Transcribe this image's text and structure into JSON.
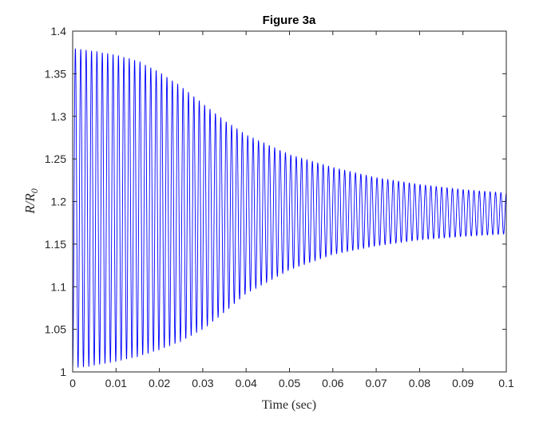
{
  "chart_data": {
    "type": "line",
    "title": "Figure 3a",
    "xlabel": "Time (sec)",
    "ylabel": "R/R_0",
    "ylabel_parts": {
      "main": "R/R",
      "sub": "0"
    },
    "xlim": [
      0,
      0.1
    ],
    "ylim": [
      1,
      1.4
    ],
    "xticks": [
      0,
      0.01,
      0.02,
      0.03,
      0.04,
      0.05,
      0.06,
      0.07,
      0.08,
      0.09,
      0.1
    ],
    "xtick_labels": [
      "0",
      "0.01",
      "0.02",
      "0.03",
      "0.04",
      "0.05",
      "0.06",
      "0.07",
      "0.08",
      "0.09",
      "0.1"
    ],
    "yticks": [
      1,
      1.05,
      1.1,
      1.15,
      1.2,
      1.25,
      1.3,
      1.35,
      1.4
    ],
    "ytick_labels": [
      "1",
      "1.05",
      "1.1",
      "1.15",
      "1.2",
      "1.25",
      "1.3",
      "1.35",
      "1.4"
    ],
    "grid": false,
    "line_color": "#0000ff",
    "oscillation_frequency_hz": 805,
    "envelope": {
      "t": [
        0,
        0.003,
        0.01,
        0.015,
        0.02,
        0.025,
        0.03,
        0.035,
        0.04,
        0.05,
        0.06,
        0.07,
        0.08,
        0.09,
        0.1
      ],
      "upper": [
        1.38,
        1.378,
        1.372,
        1.365,
        1.352,
        1.335,
        1.315,
        1.295,
        1.278,
        1.255,
        1.24,
        1.228,
        1.22,
        1.214,
        1.21
      ],
      "lower": [
        1.005,
        1.006,
        1.012,
        1.018,
        1.026,
        1.036,
        1.05,
        1.07,
        1.092,
        1.12,
        1.138,
        1.148,
        1.155,
        1.159,
        1.162
      ]
    }
  }
}
